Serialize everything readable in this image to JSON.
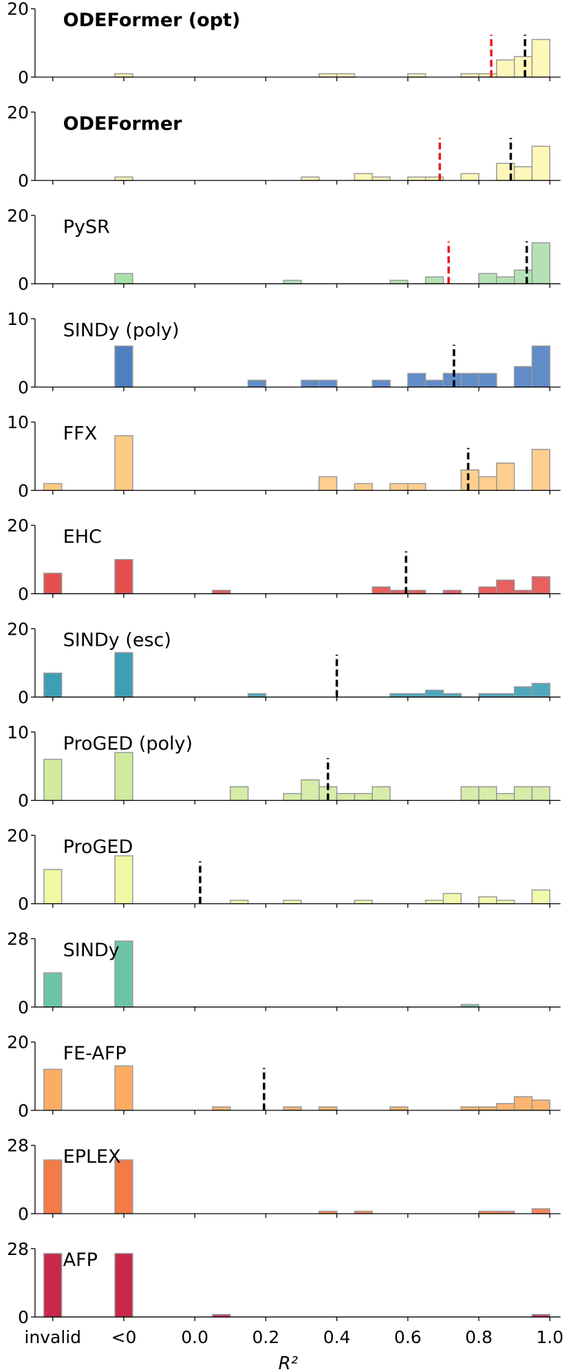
{
  "chart_data": [
    {
      "type": "histogram",
      "title": "ODEFormer (opt)",
      "title_bold": true,
      "color": "#fff6b3",
      "edgecolor": "#999999",
      "invalid": 0,
      "negative": 1,
      "bins": [
        0,
        0.05,
        0.1,
        0.15,
        0.2,
        0.25,
        0.3,
        0.35,
        0.4,
        0.45,
        0.5,
        0.55,
        0.6,
        0.65,
        0.7,
        0.75,
        0.8,
        0.85,
        0.9,
        0.95,
        1
      ],
      "counts": [
        0,
        0,
        0,
        0,
        0,
        0,
        0,
        1,
        1,
        0,
        0,
        0,
        1,
        0,
        0,
        1,
        1,
        5,
        6,
        11
      ],
      "ylim": [
        0,
        20
      ],
      "yticks": [
        0,
        20
      ],
      "xlim": [
        -0.45,
        1.03
      ],
      "lines": [
        {
          "value": 0.835,
          "color": "#e8191c"
        },
        {
          "value": 0.93,
          "color": "#000000"
        }
      ]
    },
    {
      "type": "histogram",
      "title": "ODEFormer",
      "title_bold": true,
      "color": "#fff6b3",
      "edgecolor": "#999999",
      "invalid": 0,
      "negative": 1,
      "bins": [
        0,
        0.05,
        0.1,
        0.15,
        0.2,
        0.25,
        0.3,
        0.35,
        0.4,
        0.45,
        0.5,
        0.55,
        0.6,
        0.65,
        0.7,
        0.75,
        0.8,
        0.85,
        0.9,
        0.95,
        1
      ],
      "counts": [
        0,
        0,
        0,
        0,
        0,
        0,
        1,
        0,
        0,
        2,
        1,
        0,
        1,
        1,
        0,
        2,
        0,
        5,
        4,
        10
      ],
      "ylim": [
        0,
        20
      ],
      "yticks": [
        0,
        20
      ],
      "xlim": [
        -0.45,
        1.03
      ],
      "lines": [
        {
          "value": 0.69,
          "color": "#e8191c"
        },
        {
          "value": 0.89,
          "color": "#000000"
        }
      ]
    },
    {
      "type": "histogram",
      "title": "PySR",
      "title_bold": false,
      "color": "#addfad",
      "edgecolor": "#999999",
      "invalid": 0,
      "negative": 3,
      "bins": [
        0,
        0.05,
        0.1,
        0.15,
        0.2,
        0.25,
        0.3,
        0.35,
        0.4,
        0.45,
        0.5,
        0.55,
        0.6,
        0.65,
        0.7,
        0.75,
        0.8,
        0.85,
        0.9,
        0.95,
        1
      ],
      "counts": [
        0,
        0,
        0,
        0,
        0,
        1,
        0,
        0,
        0,
        0,
        0,
        1,
        0,
        2,
        0,
        0,
        3,
        2,
        4,
        12
      ],
      "ylim": [
        0,
        20
      ],
      "yticks": [
        0,
        20
      ],
      "xlim": [
        -0.45,
        1.03
      ],
      "lines": [
        {
          "value": 0.715,
          "color": "#e8191c"
        },
        {
          "value": 0.935,
          "color": "#000000"
        }
      ]
    },
    {
      "type": "histogram",
      "title": "SINDy (poly)",
      "title_bold": false,
      "color": "#4f80c2",
      "edgecolor": "#999999",
      "invalid": 0,
      "negative": 6,
      "bins": [
        0,
        0.05,
        0.1,
        0.15,
        0.2,
        0.25,
        0.3,
        0.35,
        0.4,
        0.45,
        0.5,
        0.55,
        0.6,
        0.65,
        0.7,
        0.75,
        0.8,
        0.85,
        0.9,
        0.95,
        1
      ],
      "counts": [
        0,
        0,
        0,
        1,
        0,
        0,
        1,
        1,
        0,
        0,
        1,
        0,
        2,
        1,
        2,
        2,
        2,
        0,
        3,
        6
      ],
      "ylim": [
        0,
        10
      ],
      "yticks": [
        0,
        10
      ],
      "xlim": [
        -0.45,
        1.03
      ],
      "lines": [
        {
          "value": 0.73,
          "color": "#000000"
        }
      ]
    },
    {
      "type": "histogram",
      "title": "FFX",
      "title_bold": false,
      "color": "#fdca82",
      "edgecolor": "#999999",
      "invalid": 1,
      "negative": 8,
      "bins": [
        0,
        0.05,
        0.1,
        0.15,
        0.2,
        0.25,
        0.3,
        0.35,
        0.4,
        0.45,
        0.5,
        0.55,
        0.6,
        0.65,
        0.7,
        0.75,
        0.8,
        0.85,
        0.9,
        0.95,
        1
      ],
      "counts": [
        0,
        0,
        0,
        0,
        0,
        0,
        0,
        2,
        0,
        1,
        0,
        1,
        1,
        0,
        0,
        3,
        2,
        4,
        0,
        6
      ],
      "ylim": [
        0,
        10
      ],
      "yticks": [
        0,
        10
      ],
      "xlim": [
        -0.45,
        1.03
      ],
      "lines": [
        {
          "value": 0.77,
          "color": "#000000"
        }
      ]
    },
    {
      "type": "histogram",
      "title": "EHC",
      "title_bold": false,
      "color": "#e54f4f",
      "edgecolor": "#999999",
      "invalid": 6,
      "negative": 10,
      "bins": [
        0,
        0.05,
        0.1,
        0.15,
        0.2,
        0.25,
        0.3,
        0.35,
        0.4,
        0.45,
        0.5,
        0.55,
        0.6,
        0.65,
        0.7,
        0.75,
        0.8,
        0.85,
        0.9,
        0.95,
        1
      ],
      "counts": [
        0,
        1,
        0,
        0,
        0,
        0,
        0,
        0,
        0,
        0,
        2,
        1,
        1,
        0,
        1,
        0,
        2,
        4,
        1,
        5
      ],
      "ylim": [
        0,
        20
      ],
      "yticks": [
        0,
        20
      ],
      "xlim": [
        -0.45,
        1.03
      ],
      "lines": [
        {
          "value": 0.595,
          "color": "#000000"
        }
      ]
    },
    {
      "type": "histogram",
      "title": "SINDy (esc)",
      "title_bold": false,
      "color": "#3d9fb6",
      "edgecolor": "#999999",
      "invalid": 7,
      "negative": 13,
      "bins": [
        0,
        0.05,
        0.1,
        0.15,
        0.2,
        0.25,
        0.3,
        0.35,
        0.4,
        0.45,
        0.5,
        0.55,
        0.6,
        0.65,
        0.7,
        0.75,
        0.8,
        0.85,
        0.9,
        0.95,
        1
      ],
      "counts": [
        0,
        0,
        0,
        1,
        0,
        0,
        0,
        0,
        0,
        0,
        0,
        1,
        1,
        2,
        1,
        0,
        1,
        1,
        3,
        4
      ],
      "ylim": [
        0,
        20
      ],
      "yticks": [
        0,
        20
      ],
      "xlim": [
        -0.45,
        1.03
      ],
      "lines": [
        {
          "value": 0.4,
          "color": "#000000"
        }
      ]
    },
    {
      "type": "histogram",
      "title": "ProGED (poly)",
      "title_bold": false,
      "color": "#d2ea9e",
      "edgecolor": "#999999",
      "invalid": 6,
      "negative": 7,
      "bins": [
        0,
        0.05,
        0.1,
        0.15,
        0.2,
        0.25,
        0.3,
        0.35,
        0.4,
        0.45,
        0.5,
        0.55,
        0.6,
        0.65,
        0.7,
        0.75,
        0.8,
        0.85,
        0.9,
        0.95,
        1
      ],
      "counts": [
        0,
        0,
        2,
        0,
        0,
        1,
        3,
        2,
        1,
        1,
        2,
        0,
        0,
        0,
        0,
        2,
        2,
        1,
        2,
        2
      ],
      "ylim": [
        0,
        10
      ],
      "yticks": [
        0,
        10
      ],
      "xlim": [
        -0.45,
        1.03
      ],
      "lines": [
        {
          "value": 0.375,
          "color": "#000000"
        }
      ]
    },
    {
      "type": "histogram",
      "title": "ProGED",
      "title_bold": false,
      "color": "#eff8a3",
      "edgecolor": "#999999",
      "invalid": 10,
      "negative": 14,
      "bins": [
        0,
        0.05,
        0.1,
        0.15,
        0.2,
        0.25,
        0.3,
        0.35,
        0.4,
        0.45,
        0.5,
        0.55,
        0.6,
        0.65,
        0.7,
        0.75,
        0.8,
        0.85,
        0.9,
        0.95,
        1
      ],
      "counts": [
        0,
        0,
        1,
        0,
        0,
        1,
        0,
        0,
        0,
        1,
        0,
        0,
        0,
        1,
        3,
        0,
        2,
        1,
        0,
        4
      ],
      "ylim": [
        0,
        20
      ],
      "yticks": [
        0,
        20
      ],
      "xlim": [
        -0.45,
        1.03
      ],
      "lines": [
        {
          "value": 0.015,
          "color": "#000000"
        }
      ]
    },
    {
      "type": "histogram",
      "title": "SINDy",
      "title_bold": false,
      "color": "#6cc4a6",
      "edgecolor": "#999999",
      "invalid": 14,
      "negative": 27,
      "bins": [
        0,
        0.05,
        0.1,
        0.15,
        0.2,
        0.25,
        0.3,
        0.35,
        0.4,
        0.45,
        0.5,
        0.55,
        0.6,
        0.65,
        0.7,
        0.75,
        0.8,
        0.85,
        0.9,
        0.95,
        1
      ],
      "counts": [
        0,
        0,
        0,
        0,
        0,
        0,
        0,
        0,
        0,
        0,
        0,
        0,
        0,
        0,
        0,
        1,
        0,
        0,
        0,
        0
      ],
      "ylim": [
        0,
        28
      ],
      "yticks": [
        0,
        28
      ],
      "xlim": [
        -0.45,
        1.03
      ],
      "lines": []
    },
    {
      "type": "histogram",
      "title": "FE-AFP",
      "title_bold": false,
      "color": "#fdad62",
      "edgecolor": "#999999",
      "invalid": 12,
      "negative": 13,
      "bins": [
        0,
        0.05,
        0.1,
        0.15,
        0.2,
        0.25,
        0.3,
        0.35,
        0.4,
        0.45,
        0.5,
        0.55,
        0.6,
        0.65,
        0.7,
        0.75,
        0.8,
        0.85,
        0.9,
        0.95,
        1
      ],
      "counts": [
        0,
        1,
        0,
        0,
        0,
        1,
        0,
        1,
        0,
        0,
        0,
        1,
        0,
        0,
        0,
        1,
        1,
        2,
        4,
        3
      ],
      "ylim": [
        0,
        20
      ],
      "yticks": [
        0,
        20
      ],
      "xlim": [
        -0.45,
        1.03
      ],
      "lines": [
        {
          "value": 0.195,
          "color": "#000000"
        }
      ]
    },
    {
      "type": "histogram",
      "title": "EPLEX",
      "title_bold": false,
      "color": "#f47a48",
      "edgecolor": "#999999",
      "invalid": 22,
      "negative": 22,
      "bins": [
        0,
        0.05,
        0.1,
        0.15,
        0.2,
        0.25,
        0.3,
        0.35,
        0.4,
        0.45,
        0.5,
        0.55,
        0.6,
        0.65,
        0.7,
        0.75,
        0.8,
        0.85,
        0.9,
        0.95,
        1
      ],
      "counts": [
        0,
        0,
        0,
        0,
        0,
        0,
        0,
        1,
        0,
        1,
        0,
        0,
        0,
        0,
        0,
        0,
        1,
        1,
        0,
        2
      ],
      "ylim": [
        0,
        28
      ],
      "yticks": [
        0,
        28
      ],
      "xlim": [
        -0.45,
        1.03
      ],
      "lines": []
    },
    {
      "type": "histogram",
      "title": "AFP",
      "title_bold": false,
      "color": "#c9284a",
      "edgecolor": "#999999",
      "invalid": 26,
      "negative": 26,
      "bins": [
        0,
        0.05,
        0.1,
        0.15,
        0.2,
        0.25,
        0.3,
        0.35,
        0.4,
        0.45,
        0.5,
        0.55,
        0.6,
        0.65,
        0.7,
        0.75,
        0.8,
        0.85,
        0.9,
        0.95,
        1
      ],
      "counts": [
        0,
        1,
        0,
        0,
        0,
        0,
        0,
        0,
        0,
        0,
        0,
        0,
        0,
        0,
        0,
        0,
        0,
        0,
        0,
        1
      ],
      "ylim": [
        0,
        28
      ],
      "yticks": [
        0,
        28
      ],
      "xlim": [
        -0.45,
        1.03
      ],
      "lines": [],
      "xlabel": "R²",
      "xticks": [
        {
          "value": -0.4,
          "label": "invalid"
        },
        {
          "value": -0.2,
          "label": "<0"
        },
        {
          "value": 0,
          "label": "0.0"
        },
        {
          "value": 0.2,
          "label": "0.2"
        },
        {
          "value": 0.4,
          "label": "0.4"
        },
        {
          "value": 0.6,
          "label": "0.6"
        },
        {
          "value": 0.8,
          "label": "0.8"
        },
        {
          "value": 1,
          "label": "1.0"
        }
      ]
    }
  ]
}
